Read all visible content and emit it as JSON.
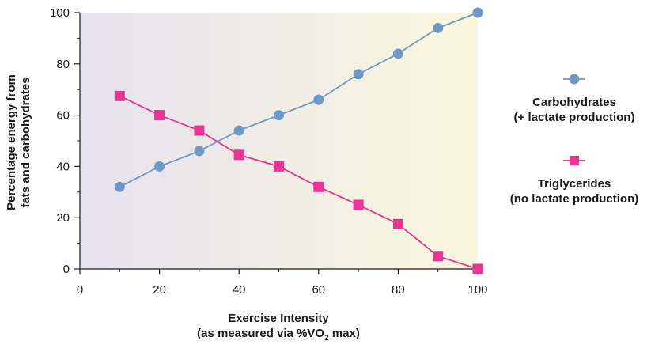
{
  "chart_data": {
    "type": "line",
    "xlabel": "Exercise Intensity",
    "xlabel_sub_prefix": "(as measured via %VO",
    "xlabel_sub_subscript": "2",
    "xlabel_sub_suffix": " max)",
    "ylabel_line1": "Percentage energy from",
    "ylabel_line2": "fats and carbohydrates",
    "xlim": [
      0,
      100
    ],
    "ylim": [
      0,
      100
    ],
    "x_ticks": [
      0,
      20,
      40,
      60,
      80,
      100
    ],
    "y_ticks": [
      0,
      20,
      40,
      60,
      80,
      100
    ],
    "x": [
      10,
      20,
      30,
      40,
      50,
      60,
      70,
      80,
      90,
      100
    ],
    "grid": false,
    "legend_position": "right",
    "background_gradient": [
      "#e6e2ef",
      "#fbf7dc"
    ],
    "series": [
      {
        "name_line1": "Carbohydrates",
        "name_line2": "(+ lactate production)",
        "marker": "circle",
        "color": "#6f98c8",
        "values": [
          32,
          40,
          46,
          54,
          60,
          66,
          76,
          84,
          94,
          100
        ]
      },
      {
        "name_line1": "Triglycerides",
        "name_line2_bold": "no",
        "name_line2_rest": " lactate production)",
        "name_line2_open": "(",
        "marker": "square",
        "color": "#ea3494",
        "values": [
          67.5,
          60,
          54,
          44.5,
          40,
          32,
          25,
          17.5,
          5,
          0
        ]
      }
    ]
  }
}
